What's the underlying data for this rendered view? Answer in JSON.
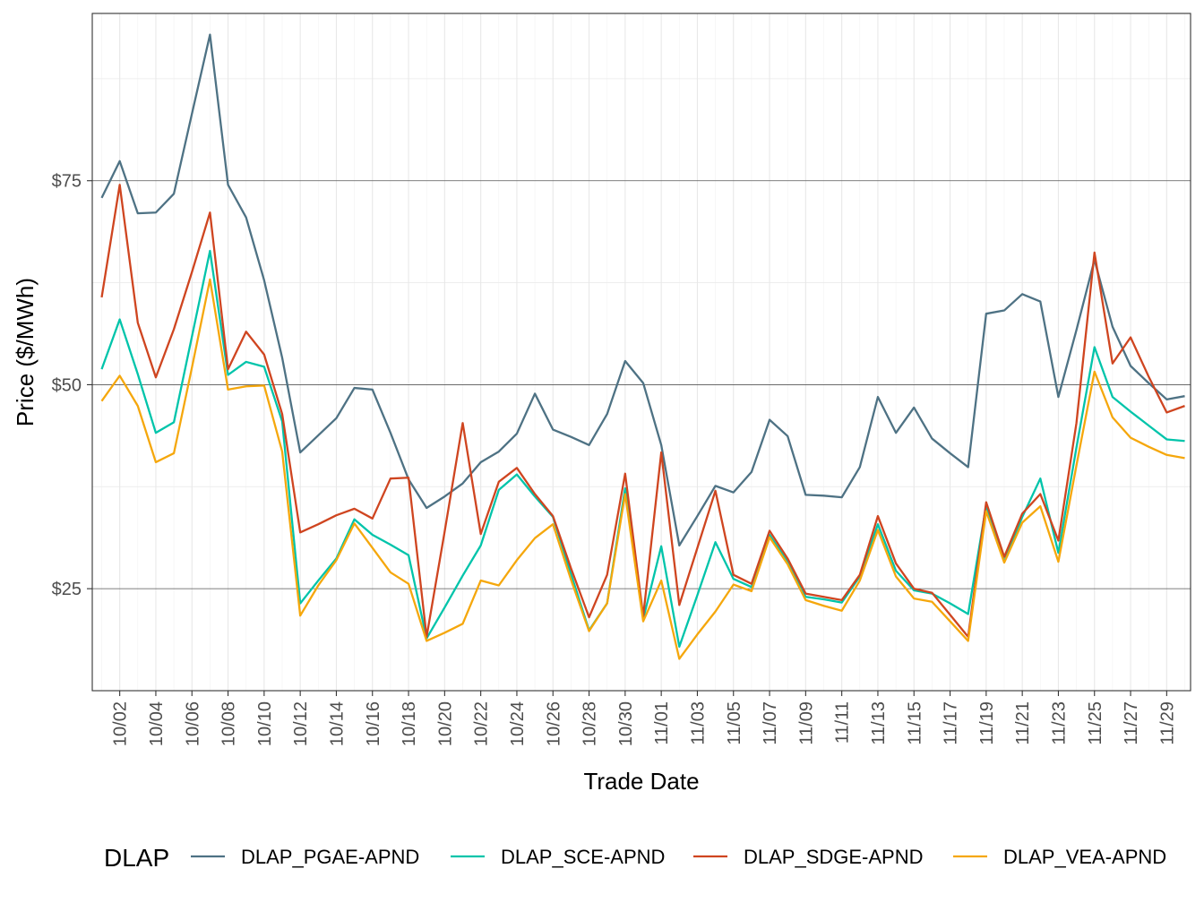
{
  "chart_data": {
    "type": "line",
    "xlabel": "Trade Date",
    "ylabel": "Price ($/MWh)",
    "ylim": [
      12.5,
      95.5
    ],
    "y_ticks": [
      25,
      50,
      75
    ],
    "y_tick_labels": [
      "$25",
      "$50",
      "$75"
    ],
    "x": [
      "10/01",
      "10/02",
      "10/03",
      "10/04",
      "10/05",
      "10/06",
      "10/07",
      "10/08",
      "10/09",
      "10/10",
      "10/11",
      "10/12",
      "10/13",
      "10/14",
      "10/15",
      "10/16",
      "10/17",
      "10/18",
      "10/19",
      "10/20",
      "10/21",
      "10/22",
      "10/23",
      "10/24",
      "10/25",
      "10/26",
      "10/27",
      "10/28",
      "10/29",
      "10/30",
      "10/31",
      "11/01",
      "11/02",
      "11/03",
      "11/04",
      "11/05",
      "11/06",
      "11/07",
      "11/08",
      "11/09",
      "11/10",
      "11/11",
      "11/12",
      "11/13",
      "11/14",
      "11/15",
      "11/16",
      "11/17",
      "11/18",
      "11/19",
      "11/20",
      "11/21",
      "11/22",
      "11/23",
      "11/24",
      "11/25",
      "11/26",
      "11/27",
      "11/28",
      "11/29",
      "11/30"
    ],
    "x_tick_labels": [
      "10/02",
      "10/04",
      "10/06",
      "10/08",
      "10/10",
      "10/12",
      "10/14",
      "10/16",
      "10/18",
      "10/20",
      "10/22",
      "10/24",
      "10/26",
      "10/28",
      "10/30",
      "11/01",
      "11/03",
      "11/05",
      "11/07",
      "11/09",
      "11/11",
      "11/13",
      "11/15",
      "11/17",
      "11/19",
      "11/21",
      "11/23",
      "11/25",
      "11/27",
      "11/29"
    ],
    "grid": true,
    "legend": {
      "title": "DLAP",
      "position": "bottom"
    },
    "series": [
      {
        "name": "DLAP_PGAE-APND",
        "color": "#4e7284",
        "values": [
          72.9,
          77.4,
          71.0,
          71.1,
          73.4,
          83.2,
          92.9,
          74.5,
          70.5,
          62.8,
          53.3,
          41.7,
          43.8,
          45.9,
          49.6,
          49.4,
          44.1,
          38.4,
          34.9,
          36.3,
          37.9,
          40.5,
          41.8,
          44.0,
          48.9,
          44.5,
          43.6,
          42.6,
          46.4,
          52.9,
          50.2,
          42.6,
          30.3,
          33.9,
          37.6,
          36.8,
          39.3,
          45.7,
          43.7,
          36.5,
          36.4,
          36.2,
          39.9,
          48.5,
          44.1,
          47.2,
          43.4,
          41.6,
          39.9,
          58.7,
          59.1,
          61.1,
          60.2,
          48.5,
          56.7,
          65.3,
          57.1,
          52.3,
          50.2,
          48.2,
          48.6
        ]
      },
      {
        "name": "DLAP_SCE-APND",
        "color": "#00c4aa",
        "values": [
          51.9,
          58.0,
          51.3,
          44.1,
          45.4,
          55.9,
          66.4,
          51.2,
          52.8,
          52.2,
          45.5,
          23.2,
          26.0,
          28.7,
          33.5,
          31.6,
          30.4,
          29.1,
          18.9,
          22.7,
          26.6,
          30.3,
          37.1,
          39.0,
          36.3,
          33.8,
          26.8,
          19.9,
          23.2,
          37.3,
          21.3,
          30.2,
          17.9,
          24.2,
          30.7,
          26.2,
          25.2,
          31.6,
          28.3,
          24.0,
          23.7,
          23.3,
          26.5,
          32.9,
          27.2,
          24.8,
          24.4,
          23.2,
          21.9,
          35.2,
          28.3,
          33.8,
          38.5,
          29.4,
          42.3,
          54.6,
          48.5,
          46.7,
          45.0,
          43.3,
          43.1
        ]
      },
      {
        "name": "DLAP_SDGE-APND",
        "color": "#cf4520",
        "values": [
          60.7,
          74.5,
          57.6,
          50.9,
          56.8,
          63.8,
          71.1,
          51.9,
          56.5,
          53.7,
          46.4,
          31.9,
          32.9,
          34.0,
          34.8,
          33.6,
          38.5,
          38.6,
          19.1,
          32.0,
          45.3,
          31.7,
          38.1,
          39.8,
          36.6,
          33.9,
          27.5,
          21.5,
          26.7,
          39.1,
          21.6,
          41.7,
          23.0,
          30.0,
          37.0,
          26.7,
          25.6,
          32.1,
          28.7,
          24.4,
          24.0,
          23.6,
          26.7,
          33.9,
          28.1,
          25.0,
          24.5,
          21.8,
          19.1,
          35.6,
          28.9,
          34.2,
          36.6,
          30.9,
          45.3,
          66.2,
          52.6,
          55.8,
          51.0,
          46.6,
          47.4
        ]
      },
      {
        "name": "DLAP_VEA-APND",
        "color": "#f5a70c",
        "values": [
          48.0,
          51.1,
          47.4,
          40.5,
          41.6,
          52.1,
          62.9,
          49.4,
          49.8,
          49.9,
          41.8,
          21.7,
          25.4,
          28.5,
          33.0,
          30.0,
          27.0,
          25.6,
          18.6,
          19.6,
          20.7,
          26.0,
          25.4,
          28.5,
          31.2,
          32.9,
          26.1,
          19.8,
          23.2,
          36.6,
          21.0,
          26.0,
          16.4,
          19.4,
          22.2,
          25.5,
          24.7,
          31.3,
          28.0,
          23.6,
          22.9,
          22.3,
          26.0,
          32.2,
          26.5,
          23.8,
          23.4,
          21.0,
          18.6,
          34.5,
          28.2,
          33.1,
          35.1,
          28.3,
          40.1,
          51.6,
          46.0,
          43.5,
          42.4,
          41.4,
          41.0
        ]
      }
    ]
  }
}
